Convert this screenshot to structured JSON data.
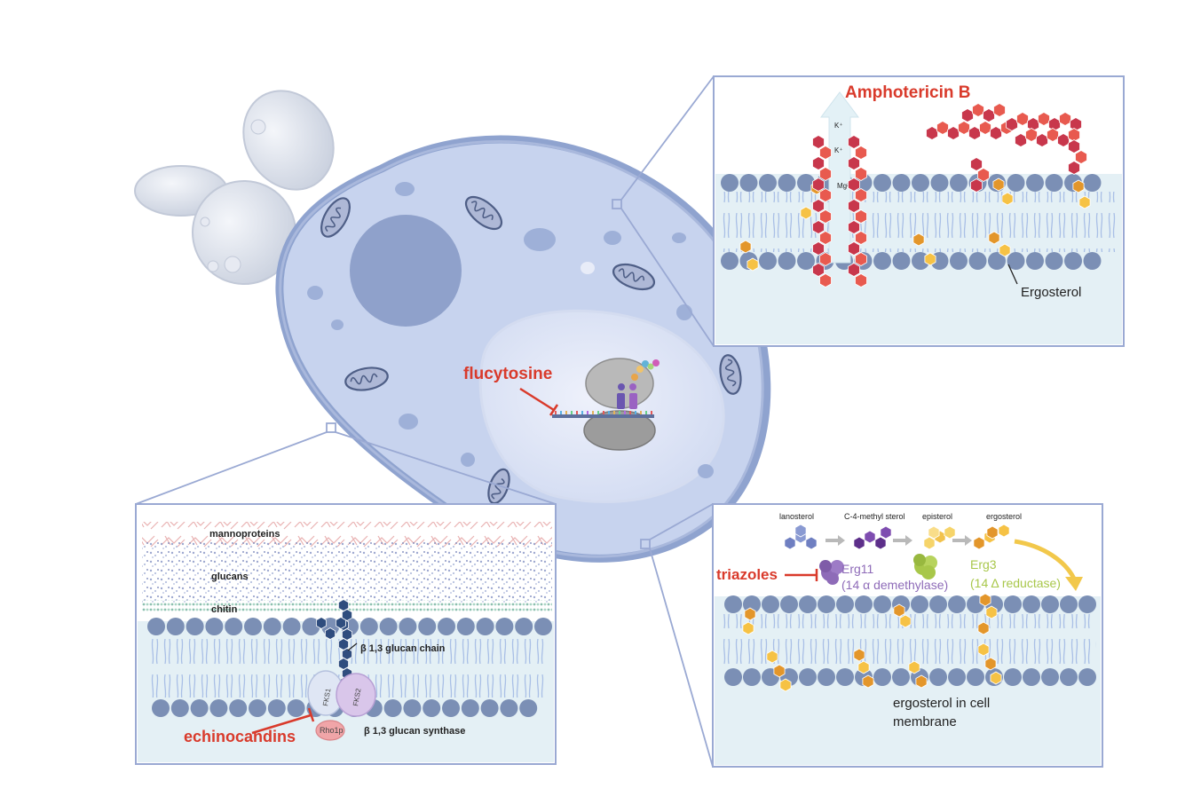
{
  "colors": {
    "drug_red": "#d93a2b",
    "cell_fill": "#c7d3ee",
    "cell_edge": "#8fa3cf",
    "panel_border": "#9aa9d3",
    "membrane_bg": "#e4f0f5",
    "lipid_head": "#7b8fb5",
    "lipid_tail": "#a9bfe6",
    "ampho_hex_dark": "#c8374c",
    "ampho_hex_light": "#e85a4f",
    "ergosterol_dark": "#e3962b",
    "ergosterol_light": "#f6c245",
    "glucan_chain": "#2f4d7e",
    "erg11": "#8e6bb8",
    "erg3": "#a8c74a",
    "arrow_grey": "#b9b9b9",
    "arrow_yellow": "#f2c84b"
  },
  "labels": {
    "flucytosine": "flucytosine",
    "amphotericin": "Amphotericin B",
    "ion_k1": "K⁺",
    "ion_k2": "K⁺",
    "ion_mg": "Mg²⁺",
    "ergosterol_pointer": "Ergosterol",
    "mannoproteins": "mannoproteins",
    "glucans": "glucans",
    "chitin": "chitin",
    "glucan_chain": "β 1,3 glucan chain",
    "fks1": "FKS1",
    "fks2": "FKS2",
    "rho1p": "Rho1p",
    "echinocandins": "echinocandins",
    "glucan_synthase": "β 1,3 glucan synthase",
    "lanosterol": "lanosterol",
    "c4_methyl_sterol": "C-4-methyl sterol",
    "episterol": "episterol",
    "ergosterol_top": "ergosterol",
    "triazoles": "triazoles",
    "erg11": "Erg11",
    "erg11_desc": "(14 α demethylase)",
    "erg3": "Erg3",
    "erg3_desc": "(14 Δ reductase)",
    "ergosterol_membrane_line1": "ergosterol in cell",
    "ergosterol_membrane_line2": "membrane"
  },
  "icons": [
    "budding-yeast-icon",
    "mitochondrion-icon",
    "ribosome-icon",
    "dna-strand-icon",
    "inhibition-bar-icon",
    "ion-channel-arrow-icon"
  ]
}
